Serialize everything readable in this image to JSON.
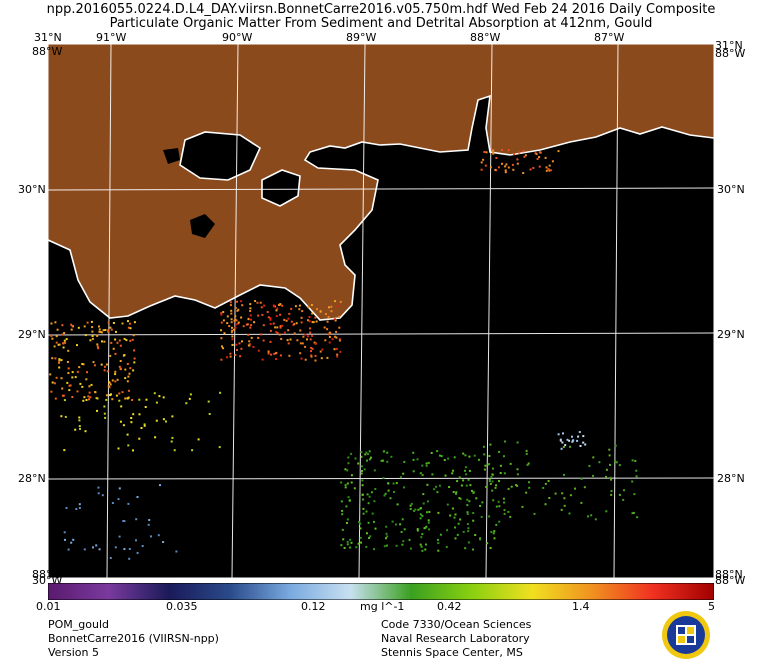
{
  "header": {
    "title_line1": "npp.2016055.0224.D.L4_DAY.viirsn.BonnetCarre2016.v05.750m.hdf    Wed Feb 24 2016 Daily Composite",
    "title_line2": "Particulate Organic Matter From Sediment and Detrital Absorption at 412nm, Gould"
  },
  "axes": {
    "lon_ticks": [
      "91°W",
      "90°W",
      "89°W",
      "88°W",
      "87°W"
    ],
    "lat_ticks": [
      "30°N",
      "29°N",
      "28°N"
    ],
    "corner_top_left": "31°N",
    "corner_top_right": "31°N",
    "corner_bottom_left": "30°W",
    "corner_bottom_right": "88°W",
    "corner_top_left_w": "88°W",
    "corner_top_right_w": "88°W",
    "corner_bottom_left_n": "88°N",
    "corner_bottom_right_n": "88°N"
  },
  "colorbar": {
    "labels": [
      "0.01",
      "0.035",
      "0.12",
      "0.42",
      "1.4",
      "5"
    ],
    "unit": "mg l^-1",
    "colors": [
      "#5a1a6e",
      "#7a3a9e",
      "#1a1a5a",
      "#2a4a8a",
      "#7aaae0",
      "#c8e0f0",
      "#3aa020",
      "#8ad010",
      "#f0e020",
      "#f09020",
      "#f03020",
      "#a00000"
    ]
  },
  "footer": {
    "left": [
      "POM_gould",
      "BonnetCarre2016 (VIIRSN-npp)",
      "Version 5"
    ],
    "right": [
      "Code 7330/Ocean Sciences",
      "Naval Research Laboratory",
      "Stennis Space Center, MS"
    ]
  },
  "map_colors": {
    "land": "#8a4a1c",
    "water": "#000000",
    "grid": "#ffffff"
  }
}
